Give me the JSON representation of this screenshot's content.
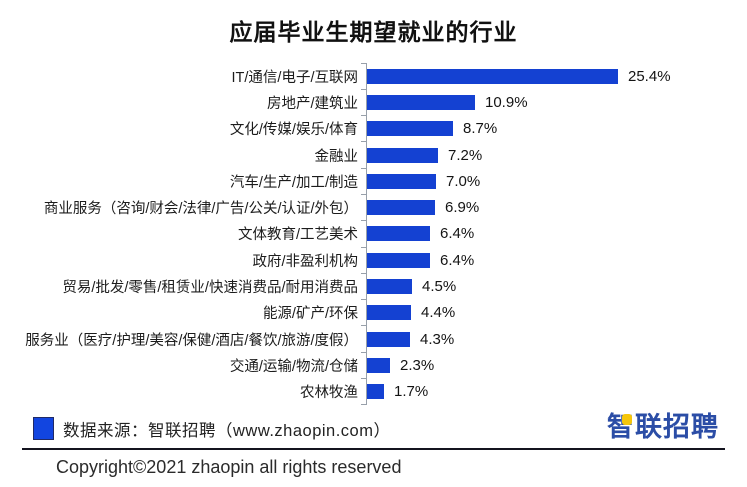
{
  "title": "应届毕业生期望就业的行业",
  "chart_data": {
    "type": "bar",
    "orientation": "horizontal",
    "title": "应届毕业生期望就业的行业",
    "xlabel": "",
    "ylabel": "",
    "xlim": [
      0,
      30
    ],
    "grid": false,
    "legend": false,
    "bar_color": "#1441d2",
    "axis_color": "#98a0aa",
    "categories": [
      "IT/通信/电子/互联网",
      "房地产/建筑业",
      "文化/传媒/娱乐/体育",
      "金融业",
      "汽车/生产/加工/制造",
      "商业服务（咨询/财会/法律/广告/公关/认证/外包）",
      "文体教育/工艺美术",
      "政府/非盈利机构",
      "贸易/批发/零售/租赁业/快速消费品/耐用消费品",
      "能源/矿产/环保",
      "服务业（医疗/护理/美容/保健/酒店/餐饮/旅游/度假）",
      "交通/运输/物流/仓储",
      "农林牧渔"
    ],
    "values": [
      25.4,
      10.9,
      8.7,
      7.2,
      7.0,
      6.9,
      6.4,
      6.4,
      4.5,
      4.4,
      4.3,
      2.3,
      1.7
    ],
    "value_labels": [
      "25.4%",
      "10.9%",
      "8.7%",
      "7.2%",
      "7.0%",
      "6.9%",
      "6.4%",
      "6.4%",
      "4.5%",
      "4.4%",
      "4.3%",
      "2.3%",
      "1.7%"
    ]
  },
  "footer": {
    "source_text": "数据来源：智联招聘（www.zhaopin.com）",
    "legend_square_color": "#1245e0",
    "logo_text": "智联招聘",
    "logo_color": "#2b4da6",
    "logo_accent_color": "#f6c60a",
    "copyright": "Copyright©2021 zhaopin all rights reserved"
  }
}
